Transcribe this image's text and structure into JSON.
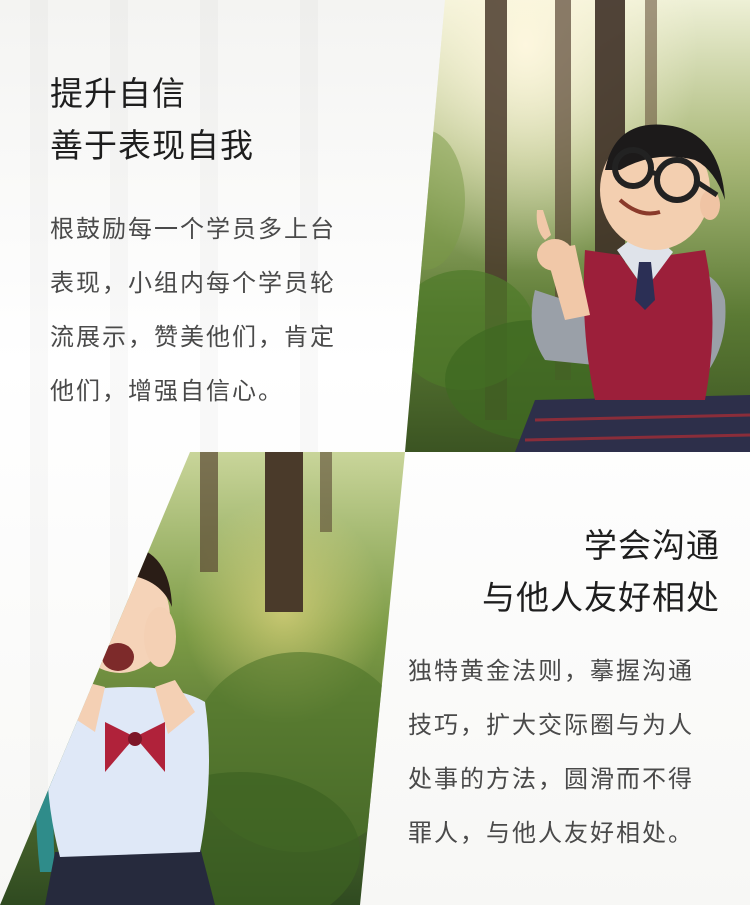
{
  "section_top": {
    "heading_line1": "提升自信",
    "heading_line2": "善于表现自我",
    "body_line1": "根鼓励每一个学员多上台",
    "body_line2": "表现，小组内每个学员轮",
    "body_line3": "流展示，赞美他们，肯定",
    "body_line4": "他们，增强自信心。"
  },
  "section_bottom": {
    "heading_line1": "学会沟通",
    "heading_line2": "与他人友好相处",
    "body_line1": "独特黄金法则，摹握沟通",
    "body_line2": "技巧，扩大交际圈与为人",
    "body_line3": "处事的方法，圆滑而不得",
    "body_line4": "罪人，与他人友好相处。"
  },
  "colors": {
    "heading": "#1e1e1e",
    "body": "#4a4a4a",
    "vest": "#9c1f3a",
    "forest_green": "#4d6b2a"
  }
}
